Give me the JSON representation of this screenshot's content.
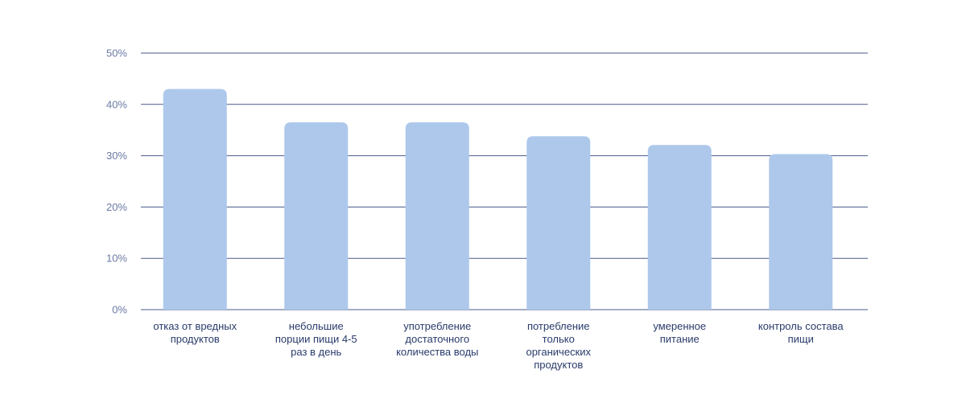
{
  "chart_data": {
    "type": "bar",
    "categories": [
      [
        "отказ от вредных",
        "продуктов"
      ],
      [
        "небольшие",
        "порции пищи 4-5",
        "раз в день"
      ],
      [
        "употребление",
        "достаточного",
        "количества воды"
      ],
      [
        "потребление",
        "только",
        "органических",
        "продуктов"
      ],
      [
        "умеренное",
        "питание"
      ],
      [
        "контроль состава",
        "пищи"
      ]
    ],
    "values": [
      43,
      36.5,
      36.5,
      33.8,
      32.1,
      30.3
    ],
    "yticks": [
      "0%",
      "10%",
      "20%",
      "30%",
      "40%",
      "50%"
    ],
    "ylim": [
      0,
      50
    ],
    "grid": true,
    "legend": "none",
    "colors": {
      "bar": "#adc8eb",
      "grid": "#4a5a8c",
      "tick": "#6b7aa5",
      "category": "#2a3b6b"
    }
  }
}
